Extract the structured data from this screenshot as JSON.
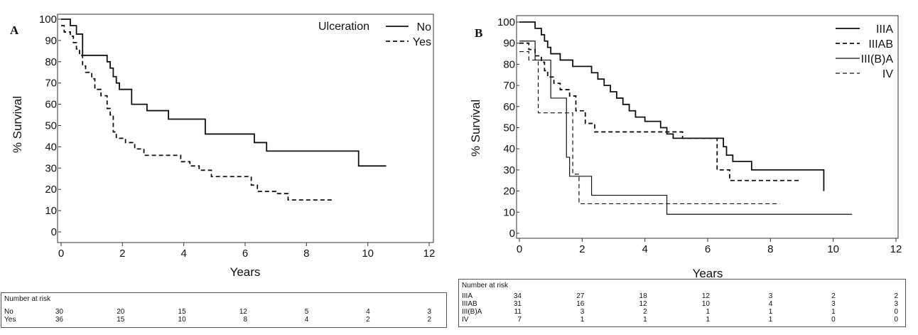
{
  "chart_data": [
    {
      "panel": "A",
      "type": "line",
      "step": true,
      "xlabel": "Years",
      "ylabel": "% Survival",
      "xlim": [
        0,
        12
      ],
      "ylim": [
        0,
        100
      ],
      "xticks": [
        0,
        2,
        4,
        6,
        8,
        10,
        12
      ],
      "yticks": [
        0,
        10,
        20,
        30,
        40,
        50,
        60,
        70,
        80,
        90,
        100
      ],
      "legend_title": "Ulceration",
      "legend_position": "top-right",
      "series": [
        {
          "name": "No",
          "dash": false,
          "x": [
            0,
            0.3,
            0.5,
            0.7,
            1.5,
            1.6,
            1.7,
            1.8,
            1.9,
            2.3,
            2.8,
            3.5,
            4.7,
            6.3,
            6.7,
            9.7,
            10.6
          ],
          "y": [
            100,
            97,
            93,
            83,
            80,
            77,
            73,
            70,
            67,
            60,
            57,
            53,
            46,
            42,
            38,
            31,
            31
          ]
        },
        {
          "name": "Yes",
          "dash": true,
          "x": [
            0,
            0.1,
            0.3,
            0.4,
            0.5,
            0.6,
            0.7,
            0.8,
            1.0,
            1.1,
            1.3,
            1.5,
            1.6,
            1.7,
            1.8,
            2.1,
            2.4,
            2.7,
            3.3,
            3.9,
            4.2,
            4.5,
            4.9,
            6.2,
            6.4,
            7.0,
            7.4,
            8.9
          ],
          "y": [
            97,
            94,
            92,
            89,
            86,
            83,
            78,
            75,
            72,
            67,
            64,
            58,
            55,
            47,
            44,
            42,
            39,
            36,
            36,
            33,
            31,
            29,
            26,
            22,
            19,
            18,
            15,
            15
          ]
        }
      ],
      "number_at_risk": {
        "title": "Number at risk",
        "rows": [
          {
            "label": "No",
            "values": [
              "30",
              "20",
              "15",
              "12",
              "5",
              "4",
              "3"
            ]
          },
          {
            "label": "Yes",
            "values": [
              "36",
              "15",
              "10",
              "8",
              "4",
              "2",
              "2"
            ]
          }
        ]
      }
    },
    {
      "panel": "B",
      "type": "line",
      "step": true,
      "xlabel": "Years",
      "ylabel": "% Survival",
      "xlim": [
        0,
        12
      ],
      "ylim": [
        0,
        100
      ],
      "xticks": [
        0,
        2,
        4,
        6,
        8,
        10,
        12
      ],
      "yticks": [
        0,
        10,
        20,
        30,
        40,
        50,
        60,
        70,
        80,
        90,
        100
      ],
      "legend_position": "top-right",
      "series": [
        {
          "name": "IIIA",
          "dash": false,
          "bold": true,
          "x": [
            0,
            0.5,
            0.7,
            0.8,
            0.9,
            1.0,
            1.3,
            1.7,
            2.3,
            2.5,
            2.7,
            2.9,
            3.1,
            3.3,
            3.5,
            3.7,
            4.0,
            4.5,
            4.7,
            4.9,
            5.2,
            6.5,
            6.6,
            6.8,
            7.4,
            9.6,
            9.7
          ],
          "y": [
            100,
            97,
            94,
            91,
            88,
            85,
            82,
            79,
            76,
            73,
            70,
            67,
            64,
            61,
            58,
            55,
            53,
            50,
            47,
            45,
            45,
            41,
            37,
            34,
            30,
            30,
            20
          ]
        },
        {
          "name": "IIIAB",
          "dash": true,
          "bold": true,
          "x": [
            0,
            0.3,
            0.5,
            0.7,
            0.8,
            0.9,
            1.1,
            1.3,
            1.6,
            1.8,
            2.1,
            2.4,
            4.7,
            5.2,
            6.3,
            6.7,
            8.9
          ],
          "y": [
            90,
            87,
            84,
            81,
            77,
            74,
            71,
            68,
            65,
            58,
            52,
            48,
            48,
            45,
            30,
            25,
            25
          ]
        },
        {
          "name": "III(B)A",
          "dash": false,
          "bold": false,
          "x": [
            0,
            0.5,
            1.0,
            1.5,
            1.6,
            1.7,
            2.3,
            4.7,
            10.6
          ],
          "y": [
            91,
            82,
            64,
            36,
            27,
            27,
            18,
            9,
            9
          ]
        },
        {
          "name": "IV",
          "dash": true,
          "bold": false,
          "x": [
            0,
            0.3,
            0.6,
            1.5,
            1.7,
            1.9,
            8.3
          ],
          "y": [
            86,
            82,
            57,
            57,
            28,
            14,
            14
          ]
        }
      ],
      "number_at_risk": {
        "title": "Number at risk",
        "rows": [
          {
            "label": "IIIA",
            "values": [
              "34",
              "27",
              "18",
              "12",
              "3",
              "2",
              "2"
            ]
          },
          {
            "label": "IIIAB",
            "values": [
              "31",
              "16",
              "12",
              "10",
              "4",
              "3",
              "3"
            ]
          },
          {
            "label": "III(B)A",
            "values": [
              "11",
              "3",
              "2",
              "1",
              "1",
              "1",
              "0"
            ]
          },
          {
            "label": "IV",
            "values": [
              "7",
              "1",
              "1",
              "1",
              "1",
              "0",
              "0"
            ]
          }
        ]
      }
    }
  ]
}
